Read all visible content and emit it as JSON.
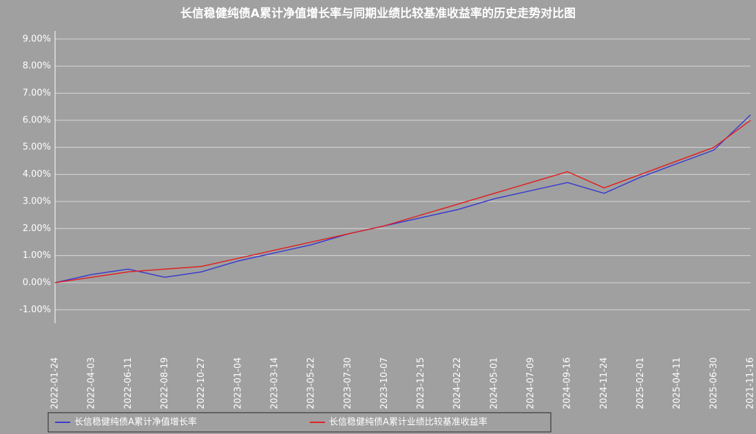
{
  "chart_data": {
    "type": "line",
    "title": "长信稳健纯债A累计净值增长率与同期业绩比较基准收益率的历史走势对比图",
    "categories": [
      "2022-01-24",
      "2022-04-03",
      "2022-06-11",
      "2022-08-19",
      "2022-10-27",
      "2023-01-04",
      "2023-03-14",
      "2023-05-22",
      "2023-07-30",
      "2023-10-07",
      "2023-12-15",
      "2024-02-22",
      "2024-05-01",
      "2024-07-09",
      "2024-09-16",
      "2024-11-24",
      "2025-02-01",
      "2025-04-11",
      "2025-06-30",
      "2021-11-16"
    ],
    "series": [
      {
        "name": "长信稳健纯债A累计净值增长率",
        "color": "#3a3ad0",
        "values": [
          0,
          0.3,
          0.5,
          0.2,
          0.4,
          0.8,
          1.1,
          1.4,
          1.8,
          2.1,
          2.4,
          2.7,
          3.1,
          3.4,
          3.7,
          3.3,
          3.9,
          4.4,
          4.9,
          6.2
        ]
      },
      {
        "name": "长信稳健纯债A累计业绩比较基准收益率",
        "color": "#e02020",
        "values": [
          0,
          0.2,
          0.4,
          0.5,
          0.6,
          0.9,
          1.2,
          1.5,
          1.8,
          2.1,
          2.5,
          2.9,
          3.3,
          3.7,
          4.1,
          3.5,
          4.0,
          4.5,
          5.0,
          6.0
        ]
      }
    ],
    "ylim": [
      -1.5,
      9.3
    ],
    "yticks": [
      {
        "value": -1,
        "label": "-1.00%"
      },
      {
        "value": 0,
        "label": "0.00%"
      },
      {
        "value": 1,
        "label": "1.00%"
      },
      {
        "value": 2,
        "label": "2.00%"
      },
      {
        "value": 3,
        "label": "3.00%"
      },
      {
        "value": 4,
        "label": "4.00%"
      },
      {
        "value": 5,
        "label": "5.00%"
      },
      {
        "value": 6,
        "label": "6.00%"
      },
      {
        "value": 7,
        "label": "7.00%"
      },
      {
        "value": 8,
        "label": "8.00%"
      },
      {
        "value": 9,
        "label": "9.00%"
      }
    ],
    "grid": true
  }
}
